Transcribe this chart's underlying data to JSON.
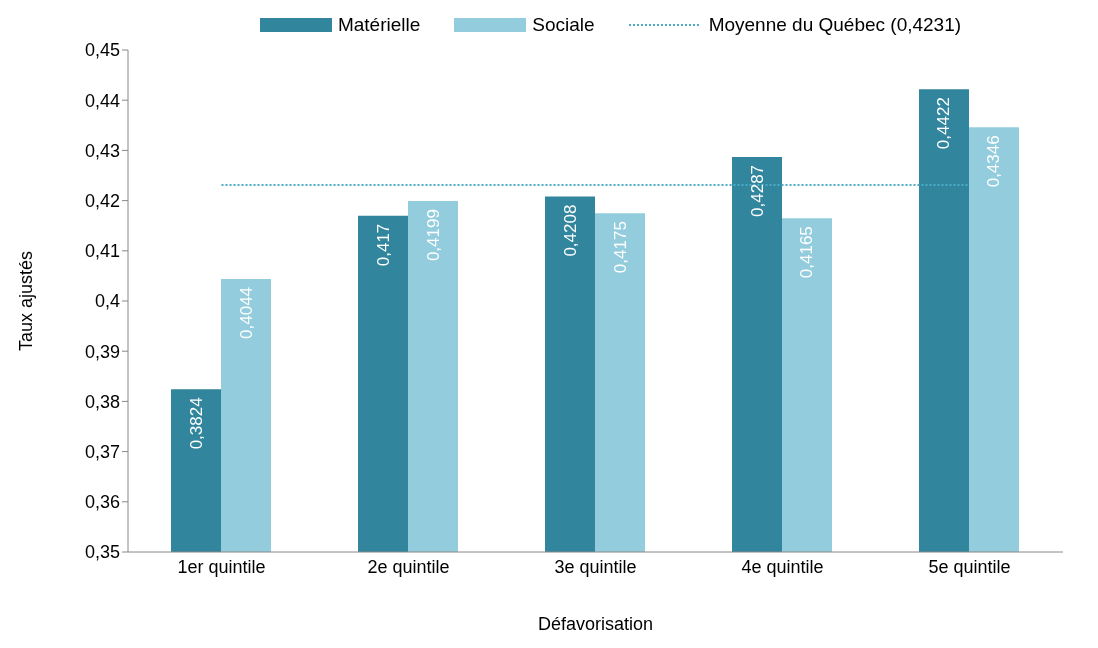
{
  "chart_data": {
    "type": "bar",
    "xlabel": "Défavorisation",
    "ylabel": "Taux ajustés",
    "categories": [
      "1er quintile",
      "2e quintile",
      "3e quintile",
      "4e quintile",
      "5e quintile"
    ],
    "series": [
      {
        "name": "Matérielle",
        "color": "#31859c",
        "values": [
          0.3824,
          0.417,
          0.4208,
          0.4287,
          0.4422
        ],
        "value_labels": [
          "0,3824",
          "0,417",
          "0,4208",
          "0,4287",
          "0,4422"
        ]
      },
      {
        "name": "Sociale",
        "color": "#93cddd",
        "values": [
          0.4044,
          0.4199,
          0.4175,
          0.4165,
          0.4346
        ],
        "value_labels": [
          "0,4044",
          "0,4199",
          "0,4175",
          "0,4165",
          "0,4346"
        ]
      }
    ],
    "ylim": [
      0.35,
      0.45
    ],
    "yticks": [
      {
        "value": 0.35,
        "label": "0,35"
      },
      {
        "value": 0.36,
        "label": "0,36"
      },
      {
        "value": 0.37,
        "label": "0,37"
      },
      {
        "value": 0.38,
        "label": "0,38"
      },
      {
        "value": 0.39,
        "label": "0,39"
      },
      {
        "value": 0.4,
        "label": "0,4"
      },
      {
        "value": 0.41,
        "label": "0,41"
      },
      {
        "value": 0.42,
        "label": "0,42"
      },
      {
        "value": 0.43,
        "label": "0,43"
      },
      {
        "value": 0.44,
        "label": "0,44"
      },
      {
        "value": 0.45,
        "label": "0,45"
      }
    ],
    "ref_lines": [
      {
        "axis": "y",
        "value": 0.4231,
        "label": "Moyenne du Québec (0,4231)",
        "color": "#4bacc6",
        "line_style": "dotted"
      }
    ],
    "legend": "top",
    "grid": false
  }
}
